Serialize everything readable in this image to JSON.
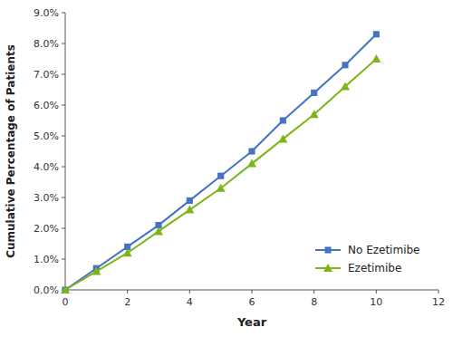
{
  "chart_data": {
    "type": "line",
    "x_label": "Year",
    "y_label": "Cumulative Percentage of Patients",
    "x": [
      0,
      1,
      2,
      3,
      4,
      5,
      6,
      7,
      8,
      9,
      10
    ],
    "series": [
      {
        "name": "No Ezetimibe",
        "color": "#4472C4",
        "marker": "square",
        "values": [
          0.0,
          0.007,
          0.014,
          0.021,
          0.029,
          0.037,
          0.045,
          0.055,
          0.064,
          0.073,
          0.083
        ]
      },
      {
        "name": "Ezetimibe",
        "color": "#7CB518",
        "marker": "triangle",
        "values": [
          0.0,
          0.006,
          0.012,
          0.019,
          0.026,
          0.033,
          0.041,
          0.049,
          0.057,
          0.066,
          0.075
        ]
      }
    ],
    "xlim": [
      0,
      12
    ],
    "ylim": [
      0.0,
      0.09
    ],
    "xticks": [
      0,
      2,
      4,
      6,
      8,
      10,
      12
    ],
    "yticks": [
      {
        "value": 0.0,
        "label": "0.0%"
      },
      {
        "value": 0.01,
        "label": "1.0%"
      },
      {
        "value": 0.02,
        "label": "2.0%"
      },
      {
        "value": 0.03,
        "label": "3.0%"
      },
      {
        "value": 0.04,
        "label": "4.0%"
      },
      {
        "value": 0.05,
        "label": "5.0%"
      },
      {
        "value": 0.06,
        "label": "6.0%"
      },
      {
        "value": 0.07,
        "label": "7.0%"
      },
      {
        "value": 0.08,
        "label": "8.0%"
      },
      {
        "value": 0.09,
        "label": "9.0%"
      }
    ],
    "grid": false,
    "legend": "lower right"
  }
}
